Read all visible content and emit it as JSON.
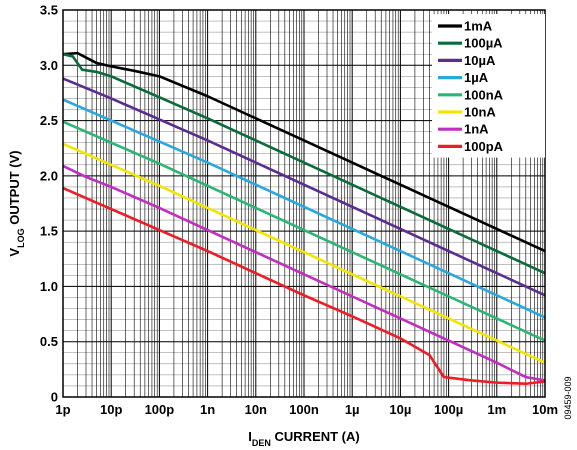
{
  "chart_data": {
    "type": "line",
    "x_scale": "log",
    "xlabel": {
      "main": "I",
      "sub": "DEN",
      "rest": " CURRENT (A)"
    },
    "ylabel": {
      "main": "V",
      "sub": "LOG",
      "rest": " OUTPUT (V)"
    },
    "xlim": [
      1e-12,
      0.01
    ],
    "ylim": [
      0,
      3.5
    ],
    "grid": true,
    "legend_position": "top-right",
    "x_ticks": [
      {
        "value": 1e-12,
        "label": "1p"
      },
      {
        "value": 1e-11,
        "label": "10p"
      },
      {
        "value": 1e-10,
        "label": "100p"
      },
      {
        "value": 1e-09,
        "label": "1n"
      },
      {
        "value": 1e-08,
        "label": "10n"
      },
      {
        "value": 1e-07,
        "label": "100n"
      },
      {
        "value": 1e-06,
        "label": "1µ"
      },
      {
        "value": 1e-05,
        "label": "10µ"
      },
      {
        "value": 0.0001,
        "label": "100µ"
      },
      {
        "value": 0.001,
        "label": "1m"
      },
      {
        "value": 0.01,
        "label": "10m"
      }
    ],
    "y_ticks": [
      {
        "value": 0,
        "label": "0"
      },
      {
        "value": 0.5,
        "label": "0.5"
      },
      {
        "value": 1.0,
        "label": "1.0"
      },
      {
        "value": 1.5,
        "label": "1.5"
      },
      {
        "value": 2.0,
        "label": "2.0"
      },
      {
        "value": 2.5,
        "label": "2.5"
      },
      {
        "value": 3.0,
        "label": "3.0"
      },
      {
        "value": 3.5,
        "label": "3.5"
      }
    ],
    "series": [
      {
        "name": "1mA",
        "color": "#000000",
        "x": [
          1e-12,
          2e-12,
          3e-12,
          5e-12,
          1e-11,
          3e-11,
          1e-10,
          1e-09,
          1e-08,
          1e-07,
          1e-06,
          1e-05,
          0.0001,
          0.001,
          0.01
        ],
        "y": [
          3.1,
          3.11,
          3.07,
          3.02,
          2.99,
          2.95,
          2.9,
          2.72,
          2.52,
          2.32,
          2.12,
          1.92,
          1.72,
          1.52,
          1.32
        ]
      },
      {
        "name": "100µA",
        "color": "#0b6b3a",
        "x": [
          1e-12,
          1.6e-12,
          2.5e-12,
          5e-12,
          1e-11,
          1e-10,
          1e-09,
          1e-08,
          1e-07,
          1e-06,
          1e-05,
          0.0001,
          0.001,
          0.01
        ],
        "y": [
          3.1,
          3.08,
          2.96,
          2.94,
          2.9,
          2.71,
          2.52,
          2.32,
          2.12,
          1.92,
          1.72,
          1.52,
          1.32,
          1.12
        ]
      },
      {
        "name": "10µA",
        "color": "#5b2d91",
        "x": [
          1e-12,
          1e-11,
          1e-10,
          1e-09,
          1e-08,
          1e-07,
          1e-06,
          1e-05,
          0.0001,
          0.001,
          0.01
        ],
        "y": [
          2.88,
          2.7,
          2.51,
          2.32,
          2.12,
          1.92,
          1.72,
          1.52,
          1.32,
          1.12,
          0.92
        ]
      },
      {
        "name": "1µA",
        "color": "#29a8e0",
        "x": [
          1e-12,
          1e-11,
          1e-10,
          1e-09,
          1e-08,
          1e-07,
          1e-06,
          1e-05,
          0.0001,
          0.001,
          0.01
        ],
        "y": [
          2.69,
          2.5,
          2.31,
          2.12,
          1.92,
          1.72,
          1.52,
          1.32,
          1.12,
          0.92,
          0.72
        ]
      },
      {
        "name": "100nA",
        "color": "#2bb673",
        "x": [
          1e-12,
          1e-11,
          1e-10,
          1e-09,
          1e-08,
          1e-07,
          1e-06,
          1e-05,
          0.0001,
          0.001,
          0.01
        ],
        "y": [
          2.49,
          2.3,
          2.11,
          1.91,
          1.71,
          1.51,
          1.31,
          1.11,
          0.91,
          0.71,
          0.51
        ]
      },
      {
        "name": "10nA",
        "color": "#f2e600",
        "x": [
          1e-12,
          1e-11,
          1e-10,
          1e-09,
          1e-08,
          1e-07,
          1e-06,
          1e-05,
          0.0001,
          0.001,
          0.01
        ],
        "y": [
          2.29,
          2.1,
          1.91,
          1.71,
          1.51,
          1.31,
          1.11,
          0.91,
          0.71,
          0.51,
          0.31
        ]
      },
      {
        "name": "1nA",
        "color": "#c02fc0",
        "x": [
          1e-12,
          3e-12,
          1e-11,
          1e-10,
          1e-09,
          1e-08,
          1e-07,
          1e-06,
          1e-05,
          0.0001,
          0.001,
          0.004,
          0.01
        ],
        "y": [
          2.09,
          1.99,
          1.9,
          1.71,
          1.51,
          1.31,
          1.11,
          0.91,
          0.71,
          0.51,
          0.31,
          0.18,
          0.15
        ]
      },
      {
        "name": "100pA",
        "color": "#ee1c25",
        "x": [
          1e-12,
          1e-11,
          1e-10,
          1e-09,
          1e-08,
          1e-07,
          1e-06,
          1e-05,
          4e-05,
          8e-05,
          0.0003,
          0.001,
          0.004,
          0.01
        ],
        "y": [
          1.89,
          1.7,
          1.51,
          1.32,
          1.12,
          0.92,
          0.73,
          0.53,
          0.38,
          0.18,
          0.15,
          0.13,
          0.12,
          0.14
        ]
      }
    ]
  },
  "side_note": "09459-009"
}
